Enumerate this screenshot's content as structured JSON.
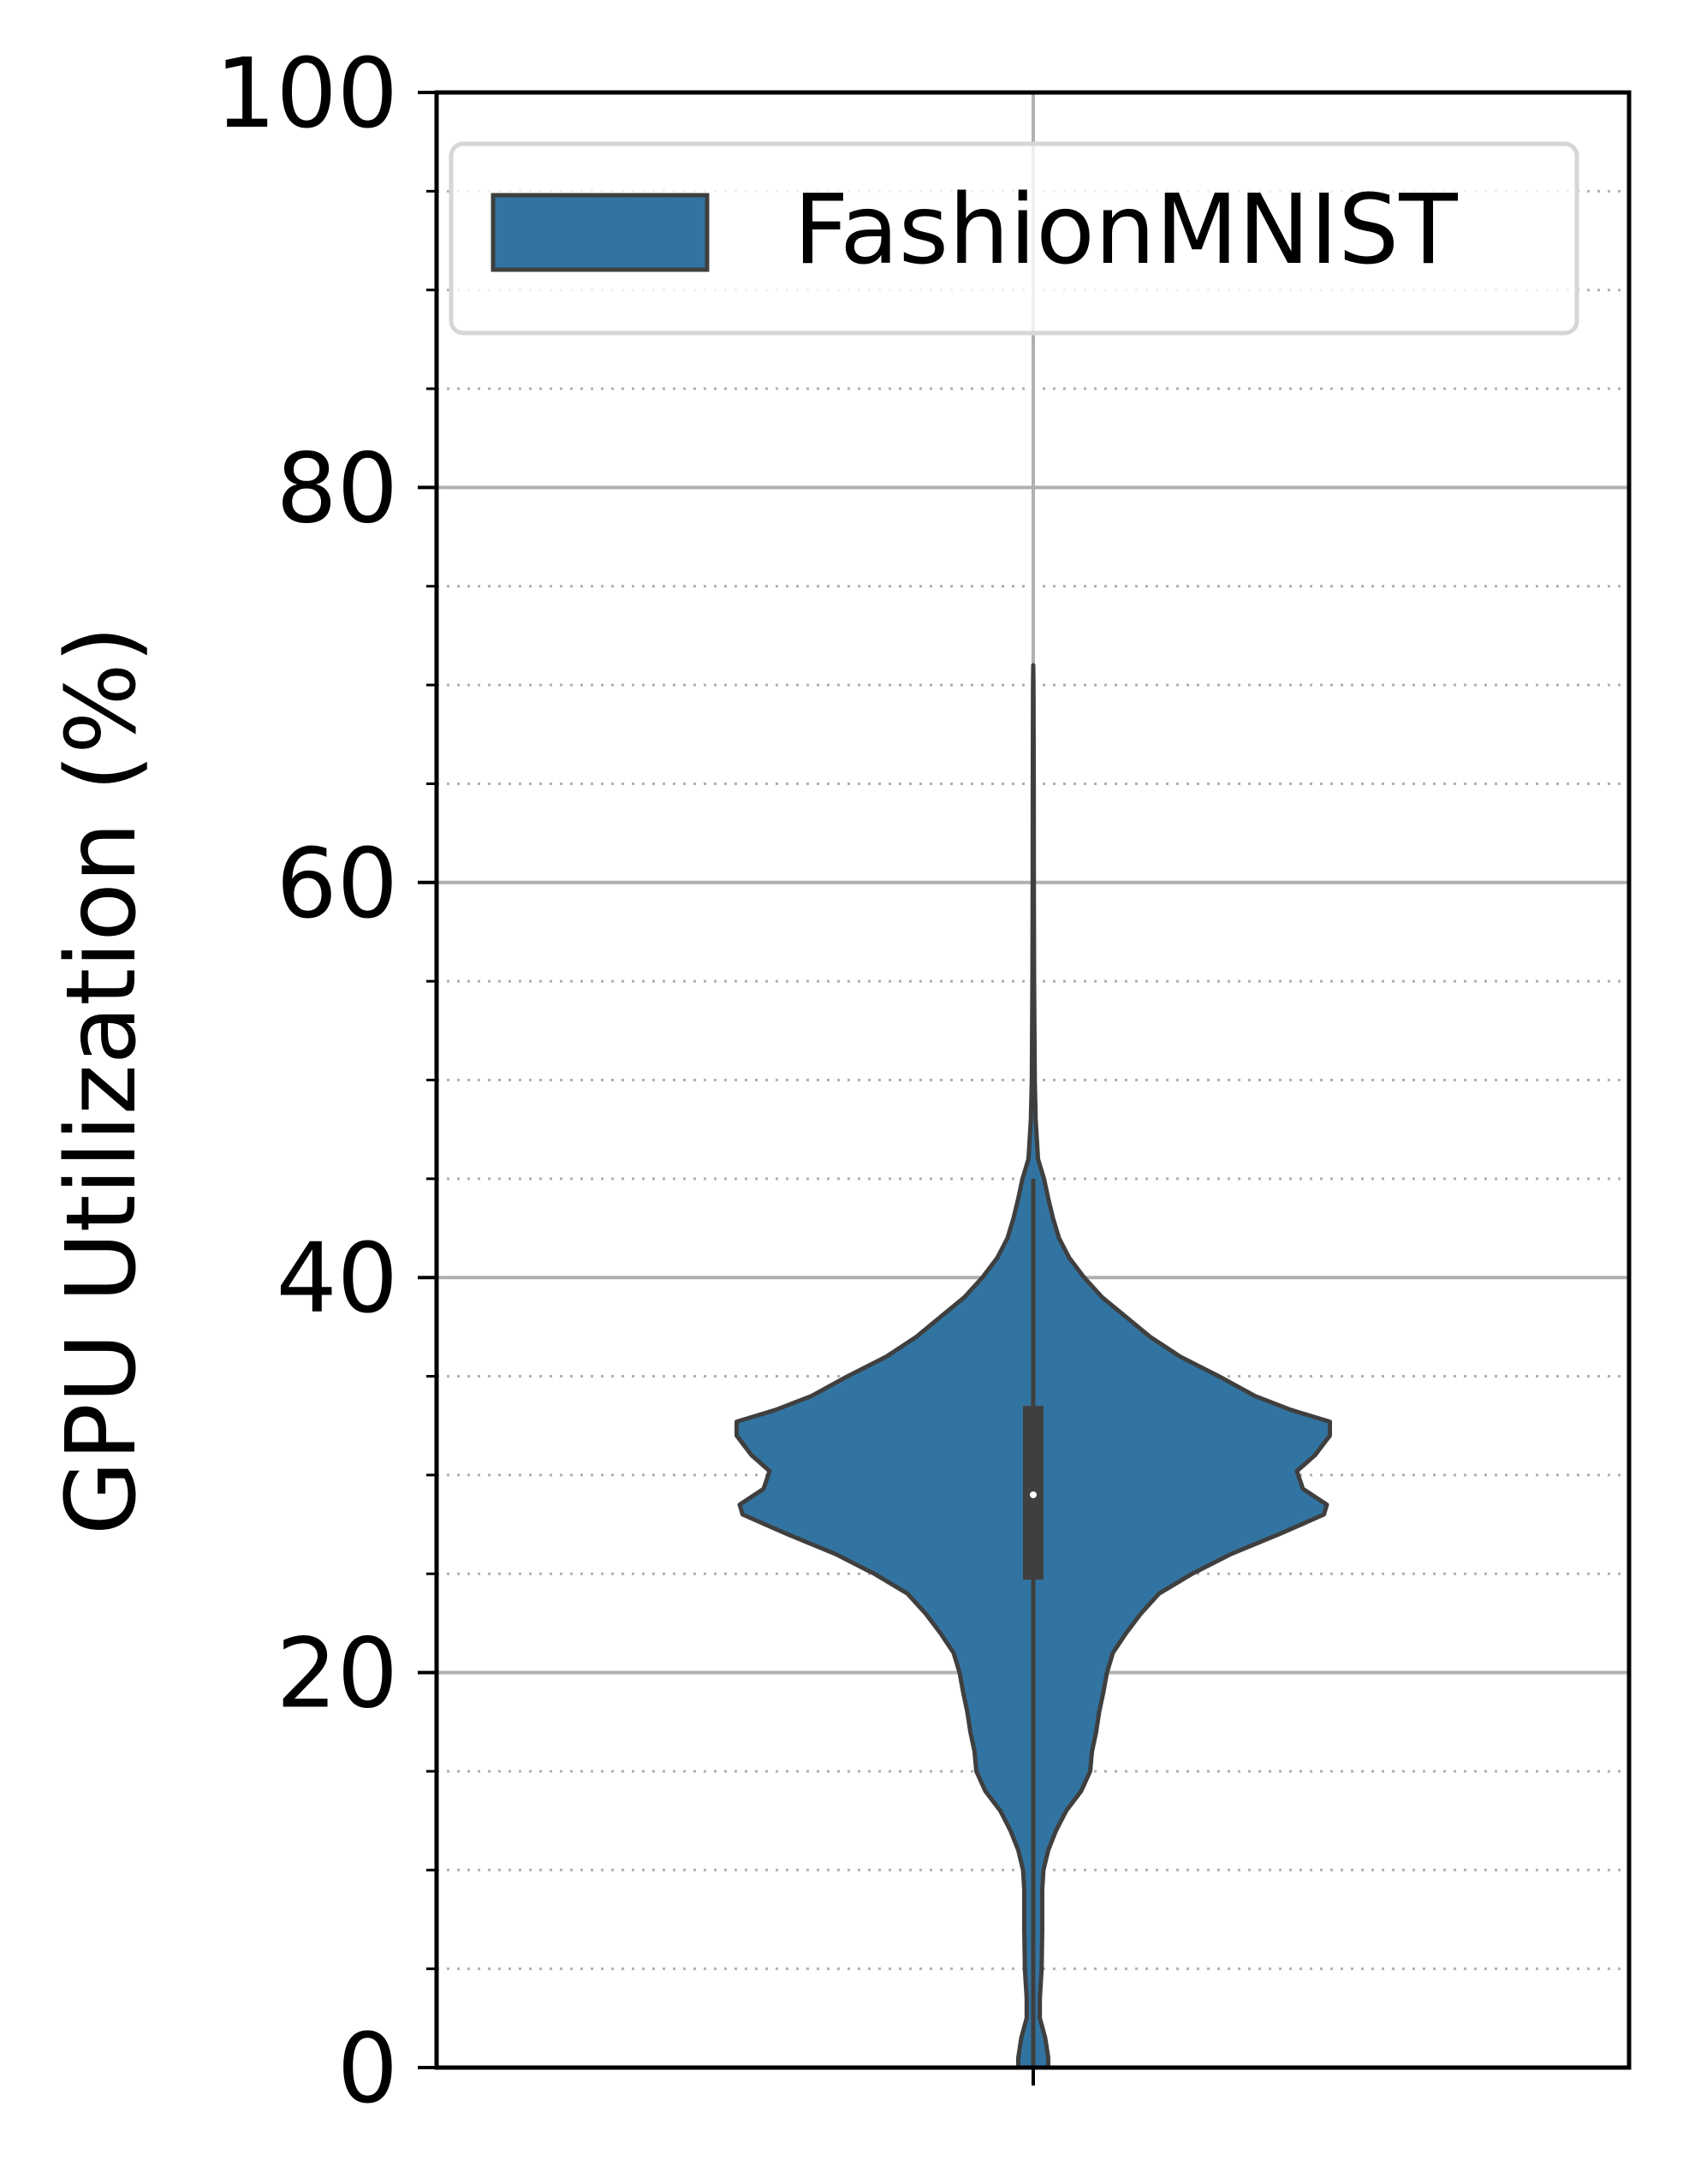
{
  "chart_data": {
    "type": "violin",
    "ylabel": "GPU Utilization (%)",
    "ylim": [
      0,
      100
    ],
    "yticks": [
      0,
      20,
      40,
      60,
      80,
      100
    ],
    "yticks_minor": [
      5,
      10,
      15,
      25,
      30,
      35,
      45,
      50,
      55,
      65,
      70,
      75,
      85,
      90,
      95
    ],
    "grid": {
      "major": true,
      "minor": true,
      "vertical": true
    },
    "legend": {
      "placement": "top-right",
      "entries": [
        {
          "label": "FashionMNIST",
          "color": "#3274a1"
        }
      ]
    },
    "series": [
      {
        "name": "FashionMNIST",
        "color": "#3274a1",
        "edge_color": "#3f3f3f",
        "median": 29,
        "q1": 24.7,
        "q3": 33.5,
        "whisker_low": 0,
        "whisker_high": 45,
        "range": [
          0,
          71
        ],
        "density_profile": [
          [
            0,
            0.025
          ],
          [
            0.5,
            0.025
          ],
          [
            1.5,
            0.02
          ],
          [
            2.5,
            0.011
          ],
          [
            3.5,
            0.011
          ],
          [
            5,
            0.014
          ],
          [
            7,
            0.015
          ],
          [
            9,
            0.015
          ],
          [
            10,
            0.017
          ],
          [
            11,
            0.025
          ],
          [
            12,
            0.038
          ],
          [
            13,
            0.055
          ],
          [
            14,
            0.08
          ],
          [
            15,
            0.095
          ],
          [
            16,
            0.098
          ],
          [
            17,
            0.105
          ],
          [
            18,
            0.11
          ],
          [
            19,
            0.117
          ],
          [
            20,
            0.123
          ],
          [
            21,
            0.133
          ],
          [
            22,
            0.155
          ],
          [
            23,
            0.18
          ],
          [
            24,
            0.21
          ],
          [
            25,
            0.265
          ],
          [
            26,
            0.33
          ],
          [
            27,
            0.41
          ],
          [
            28,
            0.485
          ],
          [
            28.5,
            0.49
          ],
          [
            29.3,
            0.45
          ],
          [
            30.2,
            0.44
          ],
          [
            31,
            0.47
          ],
          [
            32,
            0.495
          ],
          [
            32.7,
            0.495
          ],
          [
            33.3,
            0.43
          ],
          [
            34,
            0.37
          ],
          [
            35,
            0.31
          ],
          [
            36,
            0.245
          ],
          [
            37,
            0.195
          ],
          [
            38,
            0.155
          ],
          [
            39,
            0.115
          ],
          [
            40,
            0.085
          ],
          [
            41,
            0.06
          ],
          [
            42,
            0.043
          ],
          [
            43,
            0.033
          ],
          [
            44,
            0.025
          ],
          [
            45,
            0.018
          ],
          [
            46,
            0.008
          ],
          [
            48,
            0.004
          ],
          [
            50,
            0.0025
          ],
          [
            55,
            0.0015
          ],
          [
            60,
            0.001
          ],
          [
            65,
            0.0008
          ],
          [
            70,
            0.0005
          ],
          [
            71,
            0
          ]
        ]
      }
    ]
  }
}
